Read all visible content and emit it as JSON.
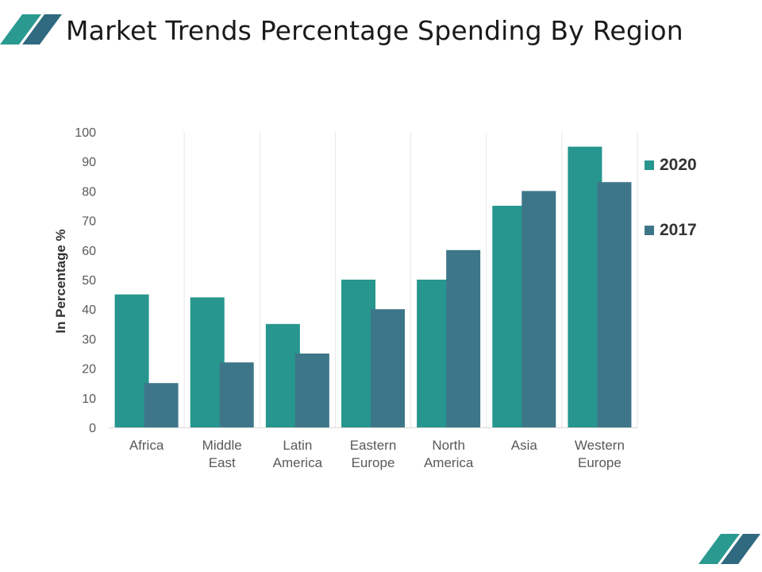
{
  "slide": {
    "title": "Market Trends Percentage Spending By Region"
  },
  "colors": {
    "series_2020": "#26968e",
    "series_2017": "#3e7689",
    "grid": "#e8e8e8",
    "axis": "#d9d9d9",
    "accent_light": "#2a9a90",
    "accent_dark": "#2f6a80"
  },
  "chart_data": {
    "type": "bar",
    "title": "",
    "xlabel": "",
    "ylabel": "In Percentage %",
    "ylim": [
      0,
      100
    ],
    "yticks": [
      0,
      10,
      20,
      30,
      40,
      50,
      60,
      70,
      80,
      90,
      100
    ],
    "grid": "vertical-between-categories",
    "legend_position": "right",
    "categories": [
      [
        "Africa"
      ],
      [
        "Middle",
        "East"
      ],
      [
        "Latin",
        "America"
      ],
      [
        "Eastern",
        "Europe"
      ],
      [
        "North",
        "America"
      ],
      [
        "Asia"
      ],
      [
        "Western",
        "Europe"
      ]
    ],
    "series": [
      {
        "name": "2020",
        "values": [
          45,
          44,
          35,
          50,
          50,
          75,
          95
        ]
      },
      {
        "name": "2017",
        "values": [
          15,
          22,
          25,
          40,
          60,
          80,
          83
        ]
      }
    ]
  }
}
